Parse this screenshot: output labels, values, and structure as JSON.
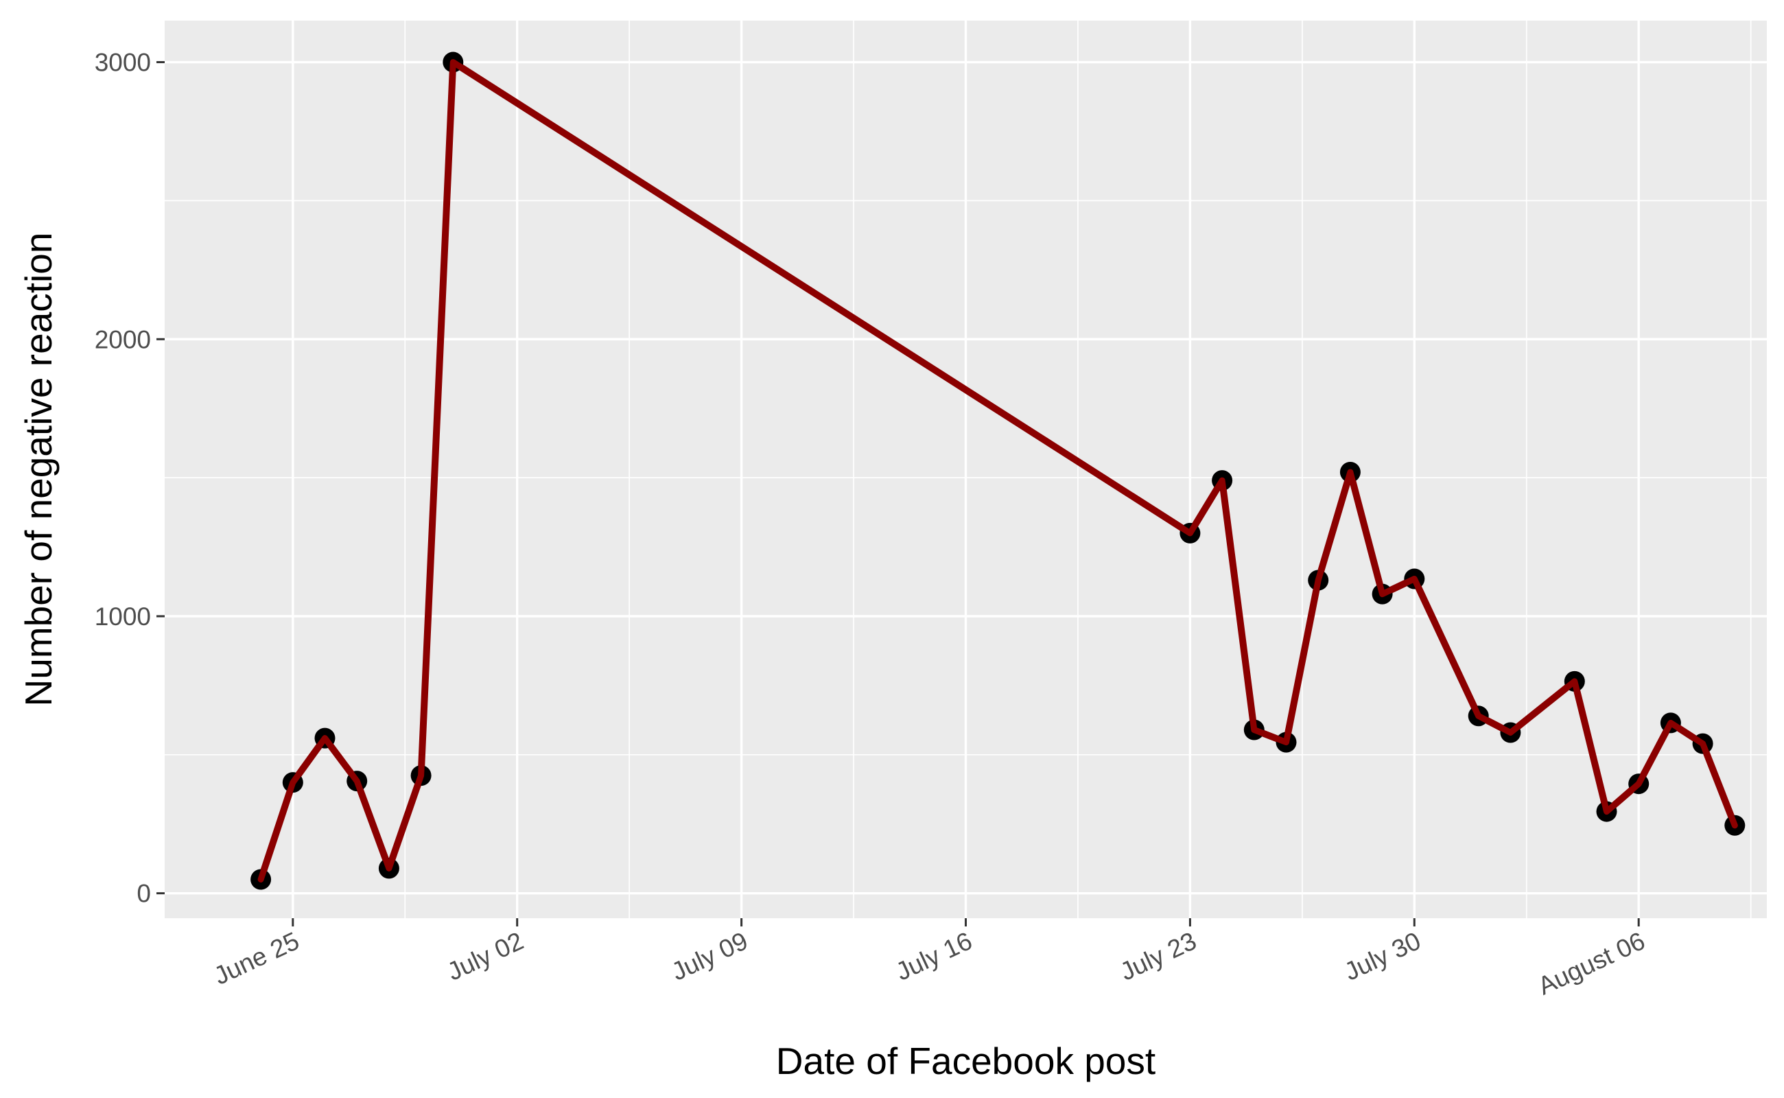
{
  "chart_data": {
    "type": "line",
    "title": "",
    "xlabel": "Date of Facebook post",
    "ylabel": "Number of negative reaction",
    "x_type": "date",
    "x_ticks": [
      {
        "date": "2017-06-25",
        "label": "June 25"
      },
      {
        "date": "2017-07-02",
        "label": "July 02"
      },
      {
        "date": "2017-07-09",
        "label": "July 09"
      },
      {
        "date": "2017-07-16",
        "label": "July 16"
      },
      {
        "date": "2017-07-23",
        "label": "July 23"
      },
      {
        "date": "2017-07-30",
        "label": "July 30"
      },
      {
        "date": "2017-08-06",
        "label": "August 06"
      }
    ],
    "y_ticks": [
      0,
      1000,
      2000,
      3000
    ],
    "xlim": [
      "2017-06-21",
      "2017-08-10"
    ],
    "ylim": [
      -90,
      3150
    ],
    "grid": true,
    "legend": "none",
    "line_color": "#8B0000",
    "point_color": "#000000",
    "panel_color": "#EBEBEB",
    "points": [
      {
        "date": "2017-06-24",
        "value": 50
      },
      {
        "date": "2017-06-25",
        "value": 400
      },
      {
        "date": "2017-06-26",
        "value": 560
      },
      {
        "date": "2017-06-27",
        "value": 405
      },
      {
        "date": "2017-06-28",
        "value": 90
      },
      {
        "date": "2017-06-29",
        "value": 425
      },
      {
        "date": "2017-06-30",
        "value": 3000
      },
      {
        "date": "2017-07-23",
        "value": 1300
      },
      {
        "date": "2017-07-24",
        "value": 1490
      },
      {
        "date": "2017-07-25",
        "value": 590
      },
      {
        "date": "2017-07-26",
        "value": 545
      },
      {
        "date": "2017-07-27",
        "value": 1130
      },
      {
        "date": "2017-07-28",
        "value": 1520
      },
      {
        "date": "2017-07-29",
        "value": 1080
      },
      {
        "date": "2017-07-30",
        "value": 1135
      },
      {
        "date": "2017-08-01",
        "value": 640
      },
      {
        "date": "2017-08-02",
        "value": 580
      },
      {
        "date": "2017-08-04",
        "value": 765
      },
      {
        "date": "2017-08-05",
        "value": 295
      },
      {
        "date": "2017-08-06",
        "value": 395
      },
      {
        "date": "2017-08-07",
        "value": 615
      },
      {
        "date": "2017-08-08",
        "value": 540
      },
      {
        "date": "2017-08-09",
        "value": 245
      }
    ]
  }
}
